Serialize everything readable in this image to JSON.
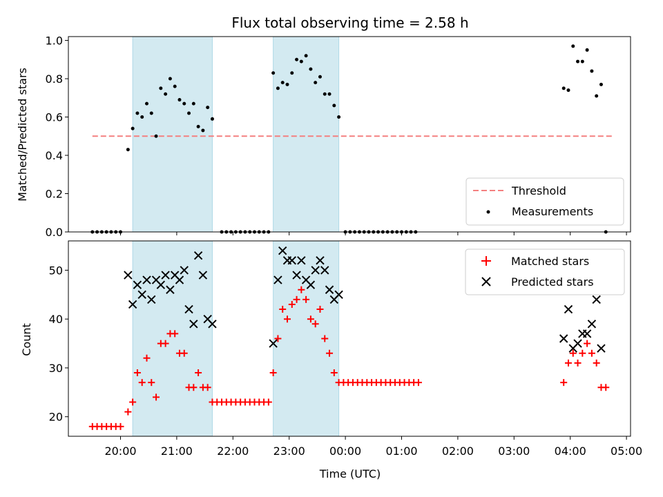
{
  "chart_data": {
    "title": "Flux total observing time = 2.58 h",
    "xlabel": "Time (UTC)",
    "x_ticks": [
      "20:00",
      "21:00",
      "22:00",
      "23:00",
      "00:00",
      "01:00",
      "02:00",
      "03:00",
      "04:00",
      "05:00"
    ],
    "shaded_intervals": [
      {
        "start": "20:13",
        "end": "21:38"
      },
      {
        "start": "22:43",
        "end": "23:53"
      }
    ],
    "colors": {
      "shade": "#d3eaf1",
      "shade_edge": "#add8e6",
      "threshold": "#f47f7f",
      "matched": "#ff0000",
      "predicted": "#000000",
      "measurements": "#000000"
    },
    "panels": [
      {
        "type": "scatter",
        "ylabel": "Matched/Predicted stars",
        "ylim": [
          0,
          1.02
        ],
        "y_ticks": [
          "0.0",
          "0.2",
          "0.4",
          "0.6",
          "0.8",
          "1.0"
        ],
        "threshold": {
          "name": "Threshold",
          "value": 0.5,
          "x_start": "19:30",
          "x_end": "04:45"
        },
        "legend": {
          "position": "lower right",
          "entries": [
            "Threshold",
            "Measurements"
          ]
        },
        "series": [
          {
            "name": "Measurements",
            "marker": "dot",
            "points": [
              [
                "19:30",
                0
              ],
              [
                "19:35",
                0
              ],
              [
                "19:40",
                0
              ],
              [
                "19:45",
                0
              ],
              [
                "19:50",
                0
              ],
              [
                "19:55",
                0
              ],
              [
                "20:00",
                0
              ],
              [
                "20:08",
                0.43
              ],
              [
                "20:13",
                0.54
              ],
              [
                "20:18",
                0.62
              ],
              [
                "20:23",
                0.6
              ],
              [
                "20:28",
                0.67
              ],
              [
                "20:33",
                0.62
              ],
              [
                "20:38",
                0.5
              ],
              [
                "20:43",
                0.75
              ],
              [
                "20:48",
                0.72
              ],
              [
                "20:53",
                0.8
              ],
              [
                "20:58",
                0.76
              ],
              [
                "21:03",
                0.69
              ],
              [
                "21:08",
                0.67
              ],
              [
                "21:13",
                0.62
              ],
              [
                "21:18",
                0.67
              ],
              [
                "21:23",
                0.55
              ],
              [
                "21:28",
                0.53
              ],
              [
                "21:33",
                0.65
              ],
              [
                "21:38",
                0.59
              ],
              [
                "21:48",
                0
              ],
              [
                "21:53",
                0
              ],
              [
                "21:58",
                0
              ],
              [
                "22:03",
                0
              ],
              [
                "22:08",
                0
              ],
              [
                "22:13",
                0
              ],
              [
                "22:18",
                0
              ],
              [
                "22:23",
                0
              ],
              [
                "22:28",
                0
              ],
              [
                "22:33",
                0
              ],
              [
                "22:38",
                0
              ],
              [
                "22:43",
                0.83
              ],
              [
                "22:48",
                0.75
              ],
              [
                "22:53",
                0.78
              ],
              [
                "22:58",
                0.77
              ],
              [
                "23:03",
                0.83
              ],
              [
                "23:08",
                0.9
              ],
              [
                "23:13",
                0.89
              ],
              [
                "23:18",
                0.92
              ],
              [
                "23:23",
                0.85
              ],
              [
                "23:28",
                0.78
              ],
              [
                "23:33",
                0.81
              ],
              [
                "23:38",
                0.72
              ],
              [
                "23:43",
                0.72
              ],
              [
                "23:48",
                0.66
              ],
              [
                "23:53",
                0.6
              ],
              [
                "00:00",
                0
              ],
              [
                "00:05",
                0
              ],
              [
                "00:10",
                0
              ],
              [
                "00:15",
                0
              ],
              [
                "00:20",
                0
              ],
              [
                "00:25",
                0
              ],
              [
                "00:30",
                0
              ],
              [
                "00:35",
                0
              ],
              [
                "00:40",
                0
              ],
              [
                "00:45",
                0
              ],
              [
                "00:50",
                0
              ],
              [
                "00:55",
                0
              ],
              [
                "01:00",
                0
              ],
              [
                "01:05",
                0
              ],
              [
                "01:10",
                0
              ],
              [
                "01:15",
                0
              ],
              [
                "03:53",
                0.75
              ],
              [
                "03:58",
                0.74
              ],
              [
                "04:03",
                0.97
              ],
              [
                "04:08",
                0.89
              ],
              [
                "04:13",
                0.89
              ],
              [
                "04:18",
                0.95
              ],
              [
                "04:23",
                0.84
              ],
              [
                "04:28",
                0.71
              ],
              [
                "04:33",
                0.77
              ],
              [
                "04:38",
                0
              ]
            ]
          }
        ]
      },
      {
        "type": "scatter",
        "ylabel": "Count",
        "ylim": [
          16,
          56
        ],
        "y_ticks": [
          "20",
          "30",
          "40",
          "50"
        ],
        "legend": {
          "position": "upper right",
          "entries": [
            "Matched stars",
            "Predicted stars"
          ]
        },
        "series": [
          {
            "name": "Matched stars",
            "marker": "plus",
            "points": [
              [
                "19:30",
                18
              ],
              [
                "19:35",
                18
              ],
              [
                "19:40",
                18
              ],
              [
                "19:45",
                18
              ],
              [
                "19:50",
                18
              ],
              [
                "19:55",
                18
              ],
              [
                "20:00",
                18
              ],
              [
                "20:08",
                21
              ],
              [
                "20:13",
                23
              ],
              [
                "20:18",
                29
              ],
              [
                "20:23",
                27
              ],
              [
                "20:28",
                32
              ],
              [
                "20:33",
                27
              ],
              [
                "20:38",
                24
              ],
              [
                "20:43",
                35
              ],
              [
                "20:48",
                35
              ],
              [
                "20:53",
                37
              ],
              [
                "20:58",
                37
              ],
              [
                "21:03",
                33
              ],
              [
                "21:08",
                33
              ],
              [
                "21:13",
                26
              ],
              [
                "21:18",
                26
              ],
              [
                "21:23",
                29
              ],
              [
                "21:28",
                26
              ],
              [
                "21:33",
                26
              ],
              [
                "21:38",
                23
              ],
              [
                "21:43",
                23
              ],
              [
                "21:48",
                23
              ],
              [
                "21:53",
                23
              ],
              [
                "21:58",
                23
              ],
              [
                "22:03",
                23
              ],
              [
                "22:08",
                23
              ],
              [
                "22:13",
                23
              ],
              [
                "22:18",
                23
              ],
              [
                "22:23",
                23
              ],
              [
                "22:28",
                23
              ],
              [
                "22:33",
                23
              ],
              [
                "22:38",
                23
              ],
              [
                "22:43",
                29
              ],
              [
                "22:48",
                36
              ],
              [
                "22:53",
                42
              ],
              [
                "22:58",
                40
              ],
              [
                "23:03",
                43
              ],
              [
                "23:08",
                44
              ],
              [
                "23:13",
                46
              ],
              [
                "23:18",
                44
              ],
              [
                "23:23",
                40
              ],
              [
                "23:28",
                39
              ],
              [
                "23:33",
                42
              ],
              [
                "23:38",
                36
              ],
              [
                "23:43",
                33
              ],
              [
                "23:48",
                29
              ],
              [
                "23:53",
                27
              ],
              [
                "23:58",
                27
              ],
              [
                "00:03",
                27
              ],
              [
                "00:08",
                27
              ],
              [
                "00:13",
                27
              ],
              [
                "00:18",
                27
              ],
              [
                "00:23",
                27
              ],
              [
                "00:28",
                27
              ],
              [
                "00:33",
                27
              ],
              [
                "00:38",
                27
              ],
              [
                "00:43",
                27
              ],
              [
                "00:48",
                27
              ],
              [
                "00:53",
                27
              ],
              [
                "00:58",
                27
              ],
              [
                "01:03",
                27
              ],
              [
                "01:08",
                27
              ],
              [
                "01:13",
                27
              ],
              [
                "01:18",
                27
              ],
              [
                "03:53",
                27
              ],
              [
                "03:58",
                31
              ],
              [
                "04:03",
                33
              ],
              [
                "04:08",
                31
              ],
              [
                "04:13",
                33
              ],
              [
                "04:18",
                35
              ],
              [
                "04:23",
                33
              ],
              [
                "04:28",
                31
              ],
              [
                "04:33",
                26
              ],
              [
                "04:38",
                26
              ]
            ]
          },
          {
            "name": "Predicted stars",
            "marker": "x",
            "points": [
              [
                "20:08",
                49
              ],
              [
                "20:13",
                43
              ],
              [
                "20:18",
                47
              ],
              [
                "20:23",
                45
              ],
              [
                "20:28",
                48
              ],
              [
                "20:33",
                44
              ],
              [
                "20:38",
                48
              ],
              [
                "20:43",
                47
              ],
              [
                "20:48",
                49
              ],
              [
                "20:53",
                46
              ],
              [
                "20:58",
                49
              ],
              [
                "21:03",
                48
              ],
              [
                "21:08",
                50
              ],
              [
                "21:13",
                42
              ],
              [
                "21:18",
                39
              ],
              [
                "21:23",
                53
              ],
              [
                "21:28",
                49
              ],
              [
                "21:33",
                40
              ],
              [
                "21:38",
                39
              ],
              [
                "22:43",
                35
              ],
              [
                "22:48",
                48
              ],
              [
                "22:53",
                54
              ],
              [
                "22:58",
                52
              ],
              [
                "23:03",
                52
              ],
              [
                "23:08",
                49
              ],
              [
                "23:13",
                52
              ],
              [
                "23:18",
                48
              ],
              [
                "23:23",
                47
              ],
              [
                "23:28",
                50
              ],
              [
                "23:33",
                52
              ],
              [
                "23:38",
                50
              ],
              [
                "23:43",
                46
              ],
              [
                "23:48",
                44
              ],
              [
                "23:53",
                45
              ],
              [
                "03:53",
                36
              ],
              [
                "03:58",
                42
              ],
              [
                "04:03",
                34
              ],
              [
                "04:08",
                35
              ],
              [
                "04:13",
                37
              ],
              [
                "04:18",
                37
              ],
              [
                "04:23",
                39
              ],
              [
                "04:28",
                44
              ],
              [
                "04:33",
                34
              ]
            ]
          }
        ]
      }
    ]
  }
}
